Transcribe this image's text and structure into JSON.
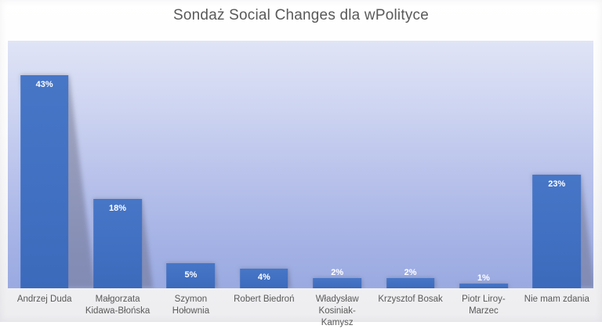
{
  "title": "Sondaż Social Changes dla wPolityce",
  "chart_data": {
    "type": "bar",
    "title": "Sondaż Social Changes dla wPolityce",
    "categories": [
      "Andrzej Duda",
      "Małgorzata Kidawa-Błońska",
      "Szymon Hołownia",
      "Robert Biedroń",
      "Władysław Kosiniak-Kamysz",
      "Krzysztof Bosak",
      "Piotr Liroy-Marzec",
      "Nie mam zdania"
    ],
    "values": [
      43,
      18,
      5,
      4,
      2,
      2,
      1,
      23
    ],
    "data_labels": [
      "43%",
      "18%",
      "5%",
      "4%",
      "2%",
      "2%",
      "1%",
      "23%"
    ],
    "xlabel": "",
    "ylabel": "",
    "ylim": [
      0,
      50
    ],
    "grid": false,
    "legend": false,
    "axis_labels_visible": false,
    "data_label_position": "inside-end",
    "colors": {
      "bar": "#4170c2",
      "data_label": "#ffffff",
      "category_label": "#595959",
      "title": "#595959",
      "plot_bg_top": "#e0e4f6",
      "plot_bg_bottom": "#9aaae1",
      "page_bg": "#f5f5f7"
    }
  }
}
